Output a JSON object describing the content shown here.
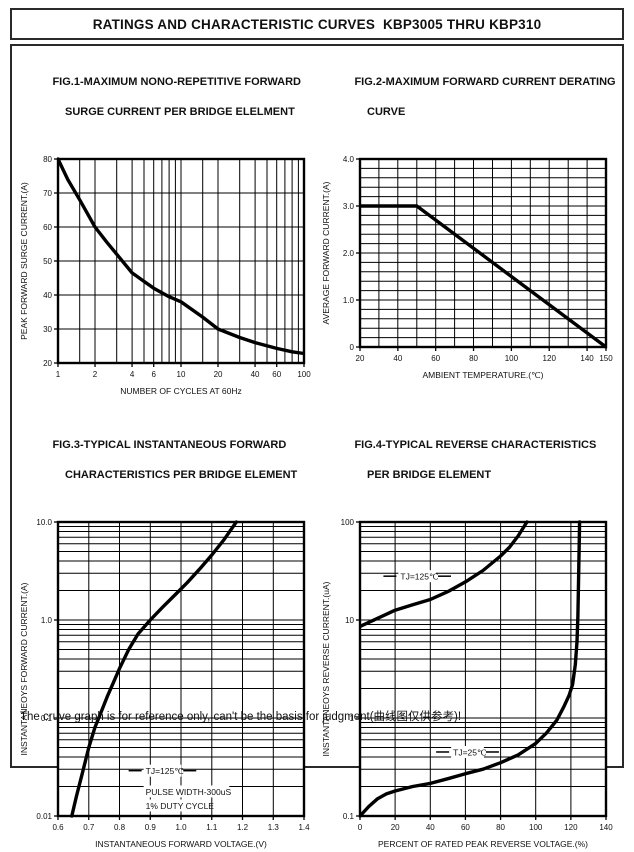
{
  "page": {
    "title": "RATINGS AND CHARACTERISTIC CURVES  KBP3005 THRU KBP310",
    "footnote": "The cruve graph is for reference only, can't be the basis for judgment(曲线图仅供参考)!"
  },
  "chart_data": [
    {
      "id": "fig1",
      "type": "line",
      "title_lines": [
        "FIG.1-MAXIMUM NONO-REPETITIVE FORWARD",
        "SURGE CURRENT PER BRIDGE ELELMENT"
      ],
      "xlabel": "NUMBER OF CYCLES AT 60Hz",
      "ylabel": "PEAK FORWARD SURGE CURRENT.(A)",
      "xscale": "log",
      "yscale": "linear",
      "xlim": [
        1,
        100
      ],
      "ylim": [
        20,
        80
      ],
      "xticks": [
        {
          "v": 1,
          "l": "1"
        },
        {
          "v": 2,
          "l": "2"
        },
        {
          "v": 4,
          "l": "4"
        },
        {
          "v": 6,
          "l": "6"
        },
        {
          "v": 10,
          "l": "10"
        },
        {
          "v": 20,
          "l": "20"
        },
        {
          "v": 40,
          "l": "40"
        },
        {
          "v": 60,
          "l": "60"
        },
        {
          "v": 100,
          "l": "100"
        }
      ],
      "yticks": [
        {
          "v": 20,
          "l": "20"
        },
        {
          "v": 30,
          "l": "30"
        },
        {
          "v": 40,
          "l": "40"
        },
        {
          "v": 50,
          "l": "50"
        },
        {
          "v": 60,
          "l": "60"
        },
        {
          "v": 70,
          "l": "70"
        },
        {
          "v": 80,
          "l": "80"
        }
      ],
      "xgrid": [
        1.5,
        2,
        3,
        4,
        5,
        6,
        7,
        8,
        9,
        10,
        15,
        20,
        30,
        40,
        50,
        60,
        70,
        80,
        90
      ],
      "ygrid": [
        30,
        40,
        50,
        60,
        70
      ],
      "series": [
        {
          "name": "surge-current",
          "points": [
            [
              1,
              80
            ],
            [
              1.2,
              74
            ],
            [
              1.5,
              68
            ],
            [
              2,
              60
            ],
            [
              2.5,
              55.5
            ],
            [
              3,
              52
            ],
            [
              4,
              46.5
            ],
            [
              5,
              44
            ],
            [
              6,
              42
            ],
            [
              8,
              39.5
            ],
            [
              10,
              38
            ],
            [
              15,
              33.5
            ],
            [
              20,
              30
            ],
            [
              30,
              27.5
            ],
            [
              40,
              26
            ],
            [
              60,
              24.3
            ],
            [
              80,
              23.3
            ],
            [
              100,
              22.8
            ]
          ]
        }
      ],
      "annotations": []
    },
    {
      "id": "fig2",
      "type": "line",
      "title_lines": [
        "FIG.2-MAXIMUM FORWARD CURRENT DERATING",
        "CURVE"
      ],
      "xlabel": "AMBIENT TEMPERATURE.(℃)",
      "ylabel": "AVERAGE FORWARD CURRENT.(A)",
      "xscale": "linear",
      "yscale": "linear",
      "xlim": [
        20,
        150
      ],
      "ylim": [
        0,
        4
      ],
      "xticks": [
        {
          "v": 20,
          "l": "20"
        },
        {
          "v": 40,
          "l": "40"
        },
        {
          "v": 60,
          "l": "60"
        },
        {
          "v": 80,
          "l": "80"
        },
        {
          "v": 100,
          "l": "100"
        },
        {
          "v": 120,
          "l": "120"
        },
        {
          "v": 140,
          "l": "140"
        },
        {
          "v": 150,
          "l": "150"
        }
      ],
      "yticks": [
        {
          "v": 0,
          "l": "0"
        },
        {
          "v": 1,
          "l": "1.0"
        },
        {
          "v": 2,
          "l": "2.0"
        },
        {
          "v": 3,
          "l": "3.0"
        },
        {
          "v": 4,
          "l": "4.0"
        }
      ],
      "xgrid": [
        30,
        40,
        50,
        60,
        70,
        80,
        90,
        100,
        110,
        120,
        130,
        140
      ],
      "ygrid": [
        0.2,
        0.4,
        0.6,
        0.8,
        1,
        1.2,
        1.4,
        1.6,
        1.8,
        2,
        2.2,
        2.4,
        2.6,
        2.8,
        3,
        3.2,
        3.4,
        3.6,
        3.8
      ],
      "series": [
        {
          "name": "derating",
          "points": [
            [
              20,
              3
            ],
            [
              50,
              3
            ],
            [
              150,
              0
            ]
          ]
        }
      ],
      "annotations": []
    },
    {
      "id": "fig3",
      "type": "line",
      "title_lines": [
        "FIG.3-TYPICAL INSTANTANEOUS FORWARD",
        "CHARACTERISTICS PER BRIDGE ELEMENT"
      ],
      "xlabel": "INSTANTANEOUS FORWARD VOLTAGE.(V)",
      "ylabel": "INSTANTANEOYS FORWARD CURRENT.(A)",
      "xscale": "linear",
      "yscale": "log",
      "xlim": [
        0.6,
        1.4
      ],
      "ylim": [
        0.01,
        10
      ],
      "xticks": [
        {
          "v": 0.6,
          "l": "0.6"
        },
        {
          "v": 0.7,
          "l": "0.7"
        },
        {
          "v": 0.8,
          "l": "0.8"
        },
        {
          "v": 0.9,
          "l": "0.9"
        },
        {
          "v": 1.0,
          "l": "1.0"
        },
        {
          "v": 1.1,
          "l": "1.1"
        },
        {
          "v": 1.2,
          "l": "1.2"
        },
        {
          "v": 1.3,
          "l": "1.3"
        },
        {
          "v": 1.4,
          "l": "1.4"
        }
      ],
      "yticks": [
        {
          "v": 0.01,
          "l": "0.01"
        },
        {
          "v": 0.1,
          "l": "0.1"
        },
        {
          "v": 1,
          "l": "1.0"
        },
        {
          "v": 10,
          "l": "10.0"
        }
      ],
      "xgrid": [
        0.7,
        0.8,
        0.9,
        1.0,
        1.1,
        1.2,
        1.3
      ],
      "ygrid": [
        0.02,
        0.03,
        0.04,
        0.05,
        0.06,
        0.07,
        0.08,
        0.09,
        0.1,
        0.2,
        0.3,
        0.4,
        0.5,
        0.6,
        0.7,
        0.8,
        0.9,
        1,
        2,
        3,
        4,
        5,
        6,
        7,
        8,
        9
      ],
      "series": [
        {
          "name": "forward-characteristic",
          "points": [
            [
              0.645,
              0.01
            ],
            [
              0.66,
              0.016
            ],
            [
              0.68,
              0.028
            ],
            [
              0.7,
              0.05
            ],
            [
              0.72,
              0.08
            ],
            [
              0.74,
              0.115
            ],
            [
              0.76,
              0.165
            ],
            [
              0.78,
              0.23
            ],
            [
              0.8,
              0.32
            ],
            [
              0.83,
              0.5
            ],
            [
              0.86,
              0.72
            ],
            [
              0.9,
              1.0
            ],
            [
              0.94,
              1.35
            ],
            [
              0.98,
              1.8
            ],
            [
              1.02,
              2.4
            ],
            [
              1.06,
              3.3
            ],
            [
              1.1,
              4.6
            ],
            [
              1.14,
              6.6
            ],
            [
              1.18,
              10
            ]
          ]
        }
      ],
      "annotations": [
        {
          "text": "TJ=125℃",
          "x": 0.885,
          "y": 0.029,
          "dash": true
        },
        {
          "text": "PULSE WIDTH-300uS",
          "x": 0.885,
          "y": 0.0178,
          "dash": false
        },
        {
          "text": "1% DUTY CYCLE",
          "x": 0.885,
          "y": 0.0128,
          "dash": false
        }
      ]
    },
    {
      "id": "fig4",
      "type": "line",
      "title_lines": [
        "FIG.4-TYPICAL REVERSE CHARACTERISTICS",
        "PER BRIDGE ELEMENT"
      ],
      "xlabel": "PERCENT OF RATED PEAK REVERSE VOLTAGE.(%)",
      "ylabel": "INSTANTANEOYS REVERSE CURRENT.(uA)",
      "xscale": "linear",
      "yscale": "log",
      "xlim": [
        0,
        140
      ],
      "ylim": [
        0.1,
        100
      ],
      "xticks": [
        {
          "v": 0,
          "l": "0"
        },
        {
          "v": 20,
          "l": "20"
        },
        {
          "v": 40,
          "l": "40"
        },
        {
          "v": 60,
          "l": "60"
        },
        {
          "v": 80,
          "l": "80"
        },
        {
          "v": 100,
          "l": "100"
        },
        {
          "v": 120,
          "l": "120"
        },
        {
          "v": 140,
          "l": "140"
        }
      ],
      "yticks": [
        {
          "v": 0.1,
          "l": "0.1"
        },
        {
          "v": 1,
          "l": "1"
        },
        {
          "v": 10,
          "l": "10"
        },
        {
          "v": 100,
          "l": "100"
        }
      ],
      "xgrid": [
        20,
        40,
        60,
        80,
        100,
        120
      ],
      "ygrid": [
        0.2,
        0.3,
        0.4,
        0.5,
        0.6,
        0.7,
        0.8,
        0.9,
        1,
        2,
        3,
        4,
        5,
        6,
        7,
        8,
        9,
        10,
        20,
        30,
        40,
        50,
        60,
        70,
        80,
        90
      ],
      "series": [
        {
          "name": "tj-125c",
          "points": [
            [
              0,
              8.6
            ],
            [
              10,
              10.4
            ],
            [
              20,
              12.6
            ],
            [
              30,
              14.3
            ],
            [
              40,
              16.2
            ],
            [
              50,
              19.5
            ],
            [
              60,
              24.5
            ],
            [
              70,
              32
            ],
            [
              80,
              45
            ],
            [
              85,
              55
            ],
            [
              90,
              72
            ],
            [
              95,
              100
            ]
          ]
        },
        {
          "name": "tj-25c",
          "points": [
            [
              0,
              0.1
            ],
            [
              5,
              0.125
            ],
            [
              10,
              0.15
            ],
            [
              15,
              0.168
            ],
            [
              20,
              0.18
            ],
            [
              30,
              0.2
            ],
            [
              40,
              0.215
            ],
            [
              50,
              0.24
            ],
            [
              60,
              0.27
            ],
            [
              70,
              0.3
            ],
            [
              80,
              0.35
            ],
            [
              90,
              0.42
            ],
            [
              100,
              0.55
            ],
            [
              106,
              0.7
            ],
            [
              112,
              0.95
            ],
            [
              116,
              1.3
            ],
            [
              119,
              1.7
            ],
            [
              121,
              2.2
            ],
            [
              122.5,
              3.5
            ],
            [
              123.5,
              6
            ],
            [
              124,
              11
            ],
            [
              124.5,
              35
            ],
            [
              125,
              100
            ]
          ]
        }
      ],
      "annotations": [
        {
          "text": "TJ=125℃",
          "x": 23,
          "y": 28,
          "dash": true
        },
        {
          "text": "TJ=25℃",
          "x": 53,
          "y": 0.45,
          "dash": true
        }
      ]
    }
  ]
}
